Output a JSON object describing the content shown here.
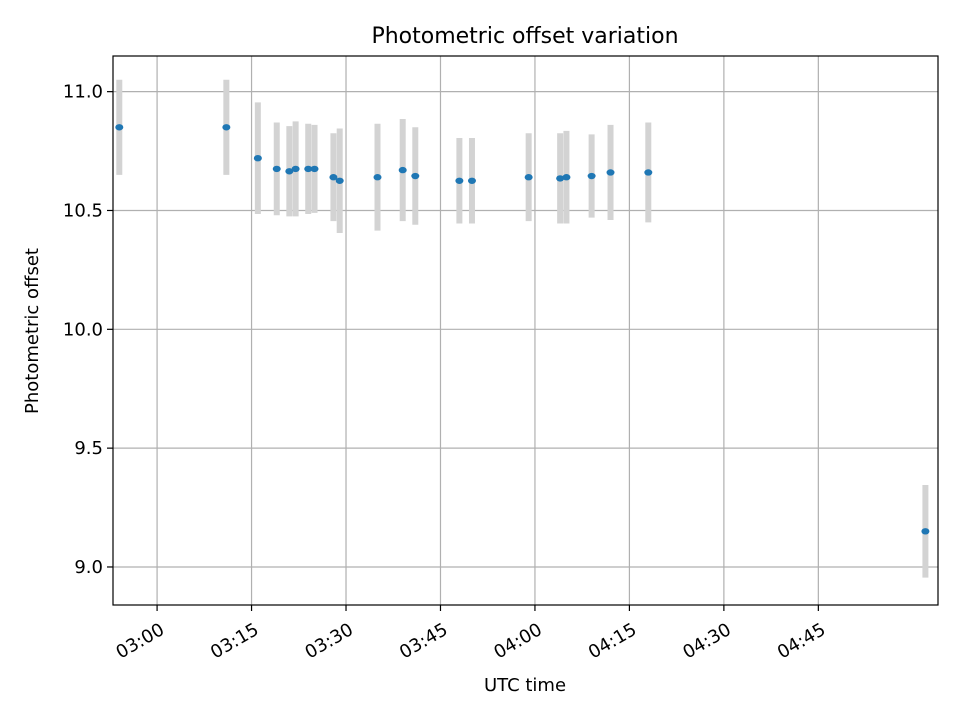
{
  "chart_data": {
    "type": "scatter",
    "title": "Photometric offset variation",
    "xlabel": "UTC time",
    "ylabel": "Photometric offset",
    "grid": true,
    "x_ticks": [
      "03:00",
      "03:15",
      "03:30",
      "03:45",
      "04:00",
      "04:15",
      "04:30",
      "04:45"
    ],
    "x_tick_minutes": [
      180,
      195,
      210,
      225,
      240,
      255,
      270,
      285
    ],
    "y_ticks": [
      "9.0",
      "9.5",
      "10.0",
      "10.5",
      "11.0"
    ],
    "y_tick_values": [
      9.0,
      9.5,
      10.0,
      10.5,
      11.0
    ],
    "xlim": [
      "02:53",
      "05:04"
    ],
    "ylim": [
      8.84,
      11.15
    ],
    "marker_color": "#1f77b4",
    "errorbar_color": "#d3d3d3",
    "series": [
      {
        "points": [
          {
            "x": "02:54",
            "y": 10.85,
            "yerr": 0.2
          },
          {
            "x": "03:11",
            "y": 10.85,
            "yerr": 0.2
          },
          {
            "x": "03:16",
            "y": 10.72,
            "yerr": 0.235
          },
          {
            "x": "03:19",
            "y": 10.675,
            "yerr": 0.195
          },
          {
            "x": "03:21",
            "y": 10.665,
            "yerr": 0.19
          },
          {
            "x": "03:22",
            "y": 10.675,
            "yerr": 0.2
          },
          {
            "x": "03:24",
            "y": 10.675,
            "yerr": 0.19
          },
          {
            "x": "03:25",
            "y": 10.675,
            "yerr": 0.185
          },
          {
            "x": "03:28",
            "y": 10.64,
            "yerr": 0.185
          },
          {
            "x": "03:29",
            "y": 10.625,
            "yerr": 0.22
          },
          {
            "x": "03:35",
            "y": 10.64,
            "yerr": 0.225
          },
          {
            "x": "03:39",
            "y": 10.67,
            "yerr": 0.215
          },
          {
            "x": "03:41",
            "y": 10.645,
            "yerr": 0.205
          },
          {
            "x": "03:48",
            "y": 10.625,
            "yerr": 0.18
          },
          {
            "x": "03:50",
            "y": 10.625,
            "yerr": 0.18
          },
          {
            "x": "03:59",
            "y": 10.64,
            "yerr": 0.185
          },
          {
            "x": "04:04",
            "y": 10.635,
            "yerr": 0.19
          },
          {
            "x": "04:05",
            "y": 10.64,
            "yerr": 0.195
          },
          {
            "x": "04:09",
            "y": 10.645,
            "yerr": 0.175
          },
          {
            "x": "04:12",
            "y": 10.66,
            "yerr": 0.2
          },
          {
            "x": "04:18",
            "y": 10.66,
            "yerr": 0.21
          },
          {
            "x": "05:02",
            "y": 9.15,
            "yerr": 0.195
          }
        ]
      }
    ]
  }
}
